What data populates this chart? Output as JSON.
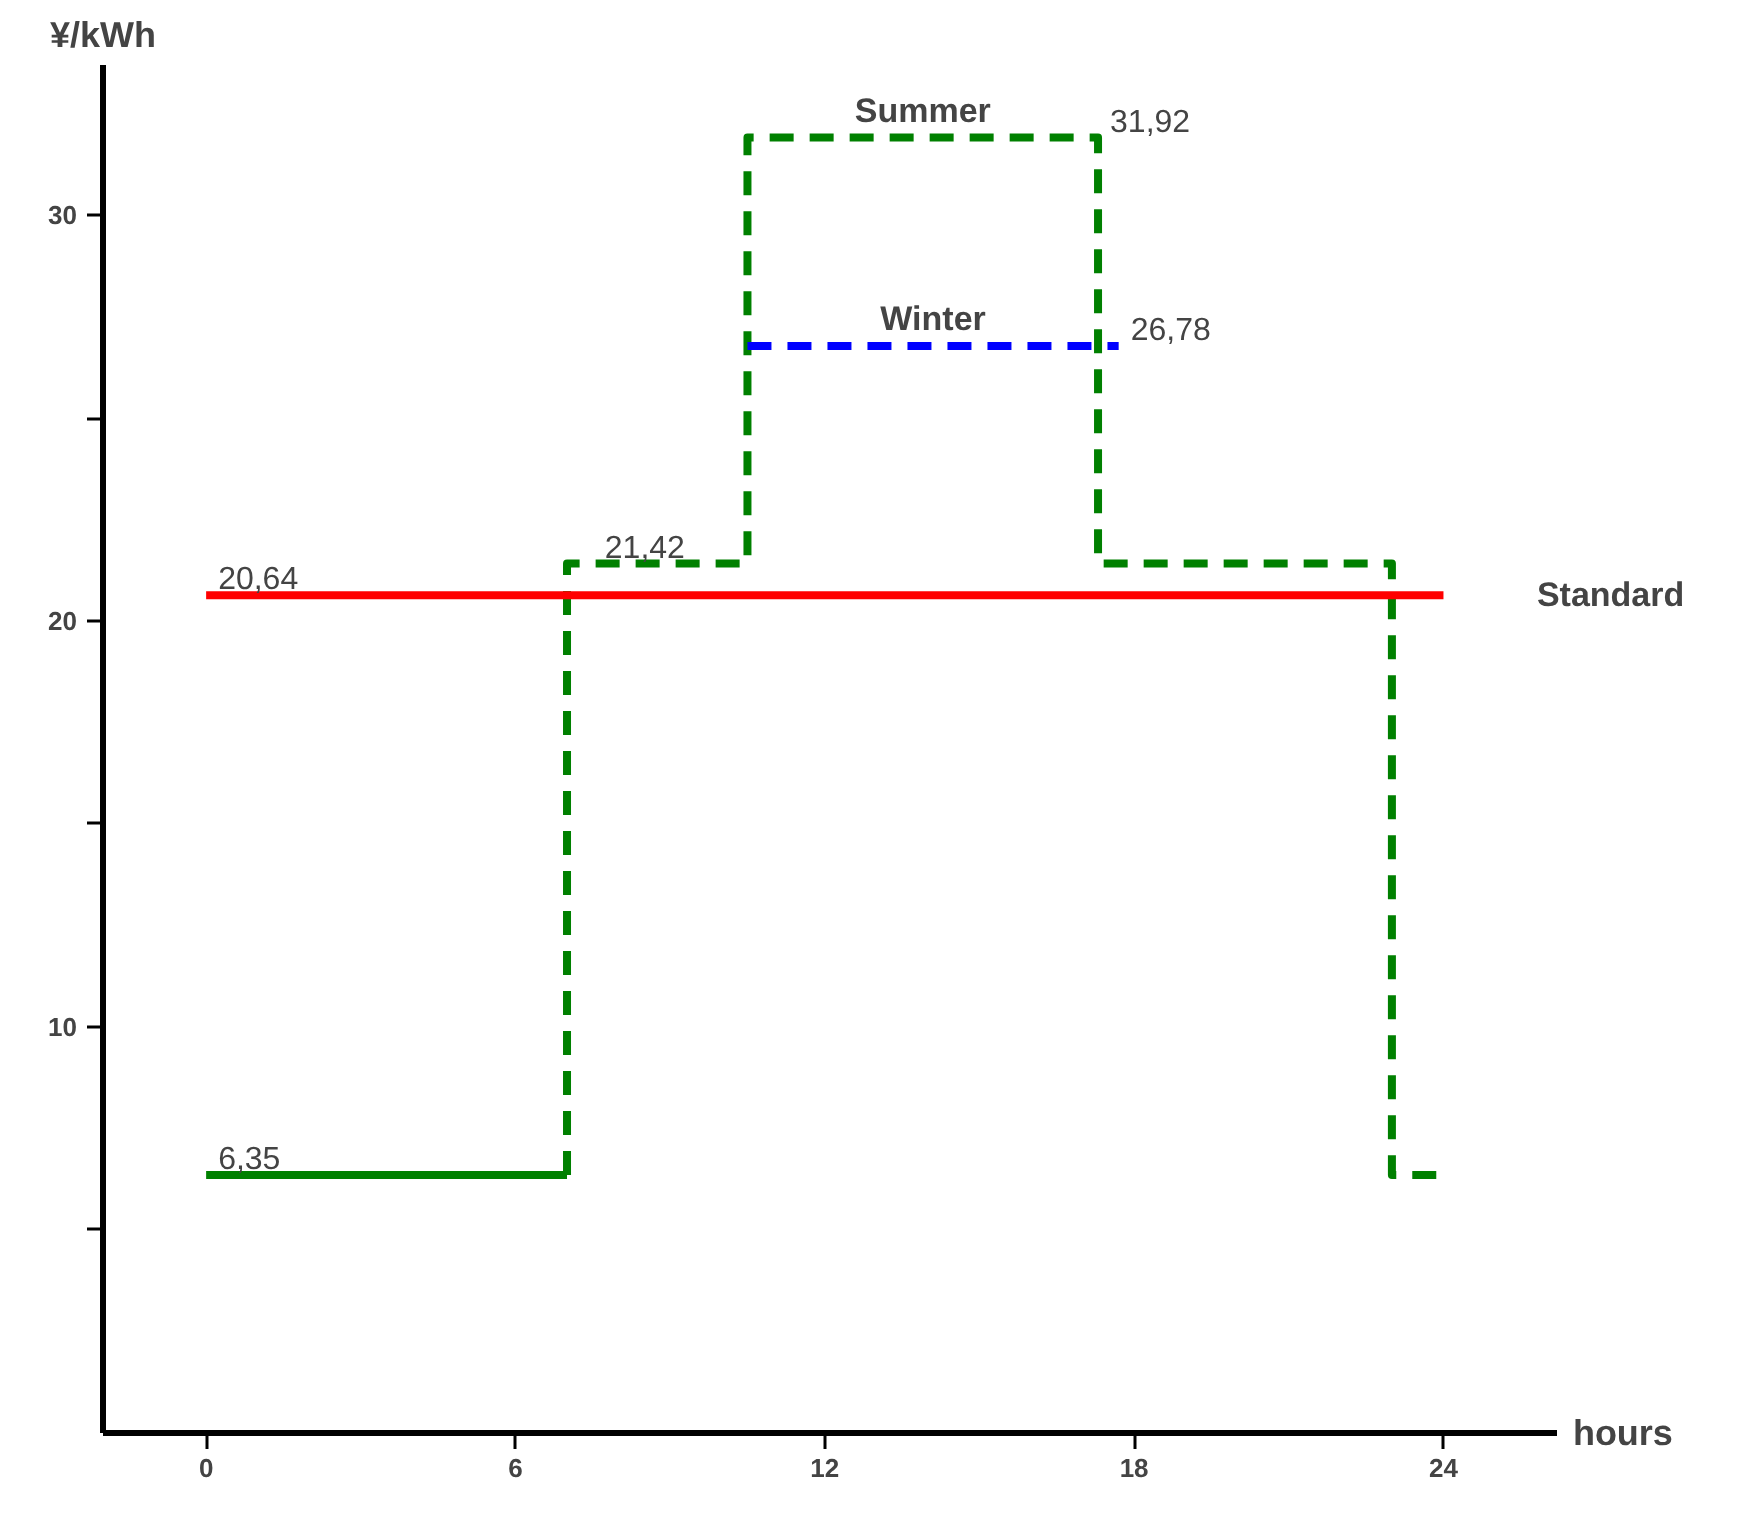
{
  "chart_data": {
    "type": "step",
    "ylabel": "¥/kWh",
    "xlabel": "hours",
    "xlim": [
      -2,
      26.2
    ],
    "ylim": [
      0,
      33.7
    ],
    "xticks": [
      0,
      6,
      12,
      18,
      24
    ],
    "yticks": [
      {
        "value": 5,
        "label": null
      },
      10,
      {
        "value": 15,
        "label": null
      },
      20,
      {
        "value": 25,
        "label": null
      },
      30
    ],
    "grid": false,
    "series": [
      {
        "color": "#008000",
        "line_style": "solid",
        "x": [
          0,
          7
        ],
        "values": [
          6.35,
          6.35
        ]
      },
      {
        "name": "Summer",
        "color": "#008000",
        "line_style": "dashed",
        "x": [
          7,
          7,
          10.5,
          17.3,
          23,
          24
        ],
        "values": [
          6.35,
          21.42,
          31.92,
          21.42,
          6.35,
          6.35
        ]
      },
      {
        "name": "Winter",
        "color": "#0000ff",
        "line_style": "dashed",
        "x": [
          10.5,
          17.7
        ],
        "values": [
          26.78,
          26.78
        ]
      },
      {
        "name": "Standard",
        "type": "line",
        "color": "#ff0000",
        "line_style": "solid",
        "x": [
          0,
          24
        ],
        "values": [
          20.64,
          20.64
        ]
      }
    ],
    "annotations": [
      {
        "text": "6,35",
        "x": 0,
        "y": 6.35
      },
      {
        "text": "20,64",
        "x": 0,
        "y": 20.64
      },
      {
        "text": "21,42",
        "x": 7.5,
        "y": 21.42
      },
      {
        "text": "31,92",
        "x": 17.3,
        "y": 31.92
      },
      {
        "text": "26,78",
        "x": 17.7,
        "y": 26.78
      }
    ]
  }
}
